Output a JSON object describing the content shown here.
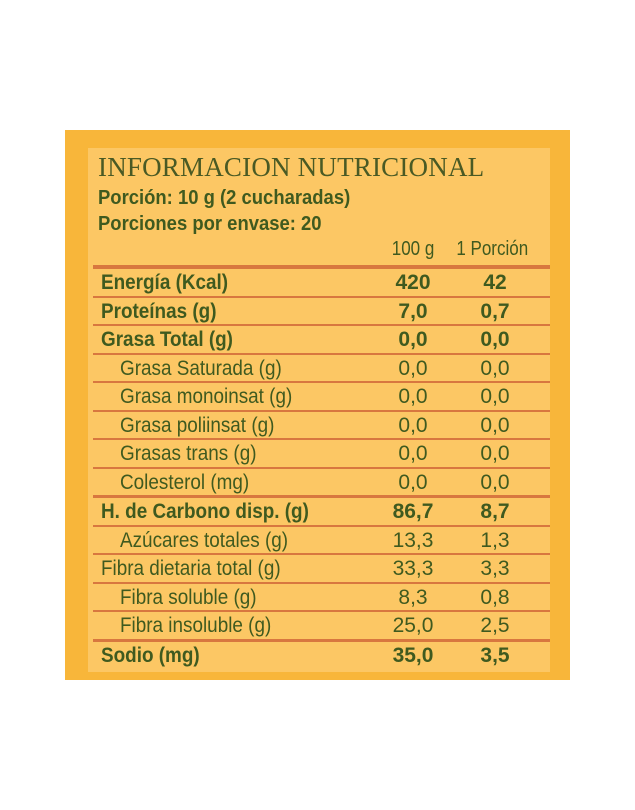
{
  "title": "INFORMACION NUTRICIONAL",
  "portion": "Porción: 10 g (2 cucharadas)",
  "servings": "Porciones por envase: 20",
  "columns": [
    "100 g",
    "1 Porción"
  ],
  "colors": {
    "outer": "#f8b63a",
    "panel": "#fcc764",
    "text": "#3f5a1f",
    "rule": "#d8773f"
  },
  "rows": [
    {
      "label": "Energía (Kcal)",
      "per100": "420",
      "portion": "42",
      "bold": true,
      "indent": false
    },
    {
      "label": "Proteínas (g)",
      "per100": "7,0",
      "portion": "0,7",
      "bold": true,
      "indent": false
    },
    {
      "label": "Grasa Total (g)",
      "per100": "0,0",
      "portion": "0,0",
      "bold": true,
      "indent": false
    },
    {
      "label": "Grasa Saturada (g)",
      "per100": "0,0",
      "portion": "0,0",
      "bold": false,
      "indent": true
    },
    {
      "label": "Grasa monoinsat (g)",
      "per100": "0,0",
      "portion": "0,0",
      "bold": false,
      "indent": true
    },
    {
      "label": "Grasa poliinsat (g)",
      "per100": "0,0",
      "portion": "0,0",
      "bold": false,
      "indent": true
    },
    {
      "label": "Grasas trans (g)",
      "per100": "0,0",
      "portion": "0,0",
      "bold": false,
      "indent": true
    },
    {
      "label": "Colesterol (mg)",
      "per100": "0,0",
      "portion": "0,0",
      "bold": false,
      "indent": true
    },
    {
      "label": "H. de Carbono disp. (g)",
      "per100": "86,7",
      "portion": "8,7",
      "bold": true,
      "indent": false
    },
    {
      "label": "Azúcares totales (g)",
      "per100": "13,3",
      "portion": "1,3",
      "bold": false,
      "indent": true
    },
    {
      "label": "Fibra dietaria total (g)",
      "per100": "33,3",
      "portion": "3,3",
      "bold": false,
      "indent": false
    },
    {
      "label": "Fibra soluble (g)",
      "per100": "8,3",
      "portion": "0,8",
      "bold": false,
      "indent": true
    },
    {
      "label": "Fibra insoluble (g)",
      "per100": "25,0",
      "portion": "2,5",
      "bold": false,
      "indent": true
    },
    {
      "label": "Sodio (mg)",
      "per100": "35,0",
      "portion": "3,5",
      "bold": true,
      "indent": false
    }
  ]
}
